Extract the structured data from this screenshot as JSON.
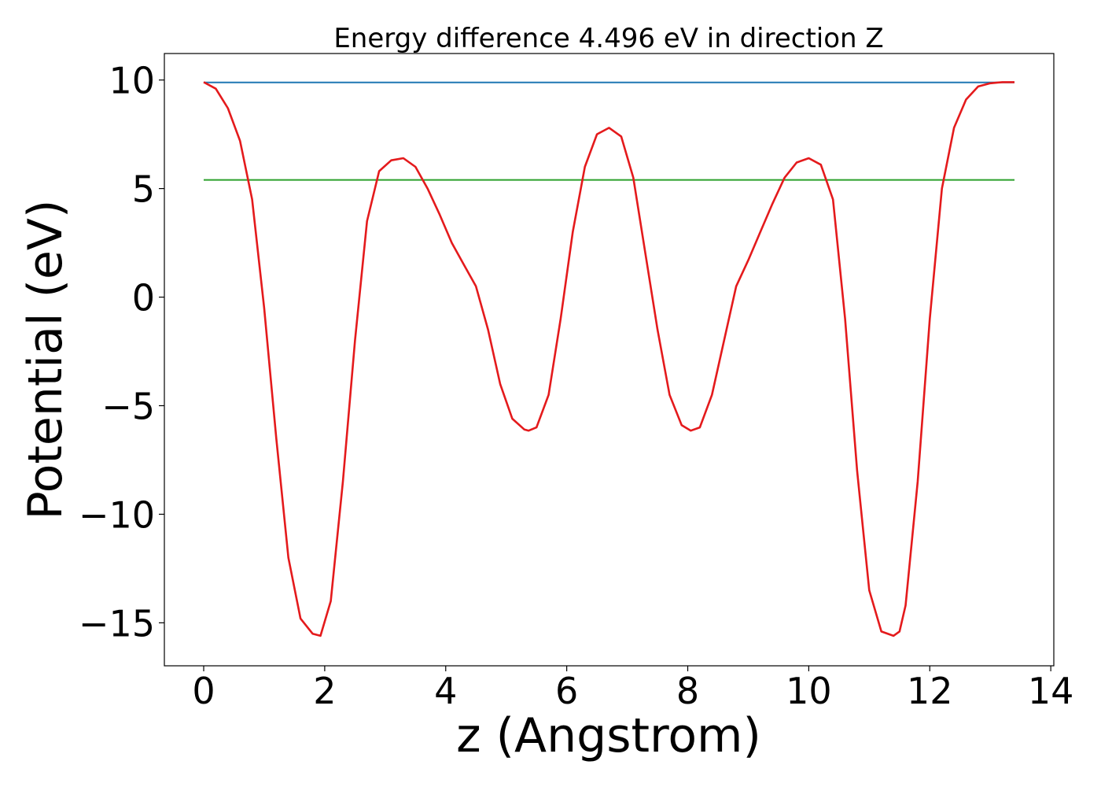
{
  "chart_data": {
    "type": "line",
    "title": "Energy difference 4.496 eV in direction Z",
    "xlabel": "z (Angstrom)",
    "ylabel": "Potential (eV)",
    "xlim": [
      -0.65,
      14.05
    ],
    "ylim": [
      -16.98,
      11.22
    ],
    "xticks": [
      0,
      2,
      4,
      6,
      8,
      10,
      12,
      14
    ],
    "xtick_labels": [
      "0",
      "2",
      "4",
      "6",
      "8",
      "10",
      "12",
      "14"
    ],
    "yticks": [
      10,
      5,
      0,
      -5,
      -10,
      -15
    ],
    "ytick_labels": [
      "10",
      "5",
      "0",
      "−5",
      "−10",
      "−15"
    ],
    "grid": false,
    "legend": "none",
    "series": [
      {
        "color": "#1f77b4",
        "x": [
          0,
          13.4
        ],
        "y": [
          9.89,
          9.89
        ]
      },
      {
        "color": "#2ca02c",
        "x": [
          0,
          13.4
        ],
        "y": [
          5.4,
          5.4
        ]
      },
      {
        "color": "#e41a1c",
        "x": [
          0,
          0.2,
          0.4,
          0.6,
          0.8,
          1.0,
          1.2,
          1.4,
          1.6,
          1.8,
          1.93,
          2.1,
          2.3,
          2.5,
          2.7,
          2.9,
          3.1,
          3.3,
          3.5,
          3.7,
          3.9,
          4.1,
          4.3,
          4.5,
          4.7,
          4.9,
          5.1,
          5.3,
          5.37,
          5.5,
          5.7,
          5.9,
          6.1,
          6.3,
          6.5,
          6.7,
          6.9,
          7.1,
          7.3,
          7.5,
          7.7,
          7.9,
          8.05,
          8.2,
          8.4,
          8.6,
          8.8,
          9.0,
          9.2,
          9.4,
          9.6,
          9.8,
          10.0,
          10.2,
          10.4,
          10.6,
          10.8,
          11.0,
          11.2,
          11.4,
          11.5,
          11.6,
          11.8,
          12.0,
          12.2,
          12.4,
          12.6,
          12.8,
          13.0,
          13.2,
          13.4
        ],
        "y": [
          9.9,
          9.6,
          8.7,
          7.2,
          4.5,
          -0.5,
          -6.5,
          -12.0,
          -14.8,
          -15.5,
          -15.6,
          -14.0,
          -8.5,
          -2.0,
          3.5,
          5.8,
          6.3,
          6.4,
          6.0,
          5.0,
          3.8,
          2.5,
          1.5,
          0.5,
          -1.5,
          -4.0,
          -5.6,
          -6.1,
          -6.15,
          -6.0,
          -4.5,
          -1.0,
          3.0,
          6.0,
          7.5,
          7.8,
          7.4,
          5.5,
          2.0,
          -1.5,
          -4.5,
          -5.9,
          -6.15,
          -6.0,
          -4.5,
          -2.0,
          0.5,
          1.7,
          3.0,
          4.3,
          5.5,
          6.2,
          6.4,
          6.1,
          4.5,
          -1.0,
          -8.0,
          -13.5,
          -15.4,
          -15.6,
          -15.4,
          -14.2,
          -8.5,
          -1.0,
          5.0,
          7.8,
          9.1,
          9.7,
          9.85,
          9.9,
          9.9
        ]
      }
    ]
  }
}
